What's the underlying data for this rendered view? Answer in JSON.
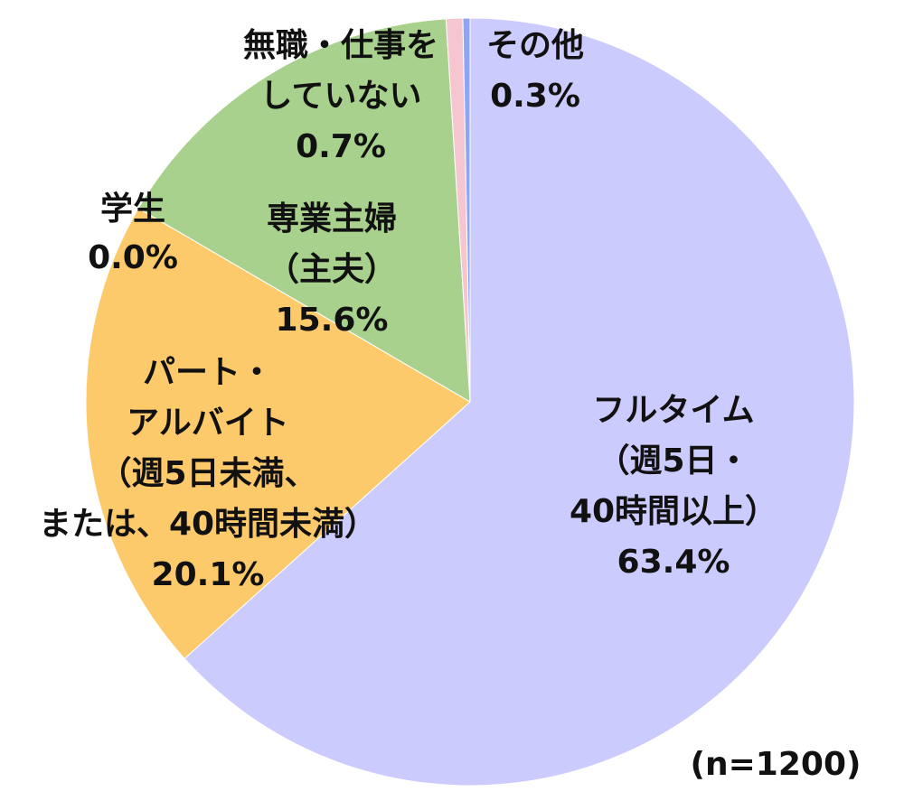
{
  "chart_data": {
    "type": "pie",
    "note": "(n=1200)",
    "slices": [
      {
        "lines": [
          "フルタイム",
          "（週5日・",
          "40時間以上）"
        ],
        "value": 63.4,
        "value_label": "63.4%",
        "color": "#cccbfd"
      },
      {
        "lines": [
          "パート・",
          "アルバイト",
          "（週5日未満、",
          "または、40時間未満）"
        ],
        "value": 20.1,
        "value_label": "20.1%",
        "color": "#fdca6b"
      },
      {
        "lines": [
          "学生"
        ],
        "value": 0.0,
        "value_label": "0.0%",
        "color": "#f2a85a"
      },
      {
        "lines": [
          "専業主婦",
          "（主夫）"
        ],
        "value": 15.6,
        "value_label": "15.6%",
        "color": "#a9d18e"
      },
      {
        "lines": [
          "無職・仕事を",
          "していない"
        ],
        "value": 0.7,
        "value_label": "0.7%",
        "color": "#f5c6cf"
      },
      {
        "lines": [
          "その他"
        ],
        "value": 0.3,
        "value_label": "0.3%",
        "color": "#8ea4f5"
      }
    ]
  }
}
